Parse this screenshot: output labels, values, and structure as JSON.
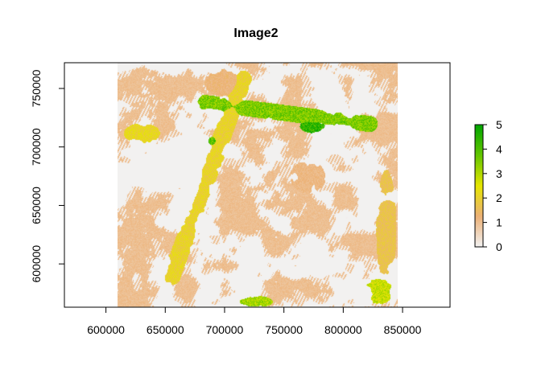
{
  "chart_data": {
    "type": "heatmap",
    "title": "Image2",
    "xlabel": "",
    "ylabel": "",
    "xlim": [
      565000,
      890000
    ],
    "ylim": [
      563000,
      772000
    ],
    "raster_extent": {
      "xmin": 610000,
      "xmax": 846000,
      "ymin": 563000,
      "ymax": 772000
    },
    "x_ticks": [
      {
        "value": 600000,
        "label": "600000"
      },
      {
        "value": 650000,
        "label": "650000"
      },
      {
        "value": 700000,
        "label": "700000"
      },
      {
        "value": 750000,
        "label": "750000"
      },
      {
        "value": 800000,
        "label": "800000"
      },
      {
        "value": 850000,
        "label": "850000"
      }
    ],
    "y_ticks": [
      {
        "value": 600000,
        "label": "600000"
      },
      {
        "value": 650000,
        "label": "650000"
      },
      {
        "value": 700000,
        "label": "700000"
      },
      {
        "value": 750000,
        "label": "750000"
      }
    ],
    "grid": false,
    "legend": {
      "placement": "right",
      "min": 0,
      "max": 5,
      "ticks": [
        {
          "value": 0,
          "label": "0"
        },
        {
          "value": 1,
          "label": "1"
        },
        {
          "value": 2,
          "label": "2"
        },
        {
          "value": 3,
          "label": "3"
        },
        {
          "value": 4,
          "label": "4"
        },
        {
          "value": 5,
          "label": "5"
        }
      ],
      "colors": [
        "#f2f2f2",
        "#ecb176",
        "#e6e600",
        "#63c600",
        "#00a600"
      ]
    },
    "patches": [
      {
        "kind": "diagonal-band",
        "x1": 655000,
        "y1": 590000,
        "x2": 715000,
        "y2": 758000,
        "half_width": 9000,
        "value": 2.2
      },
      {
        "kind": "diagonal-band",
        "x1": 683000,
        "y1": 738000,
        "x2": 822000,
        "y2": 720000,
        "half_width": 8000,
        "value": 3.8
      },
      {
        "kind": "blob",
        "x": 775000,
        "y": 718000,
        "rx": 14000,
        "ry": 7000,
        "value": 4.8
      },
      {
        "kind": "blob",
        "x": 800000,
        "y": 722000,
        "rx": 15000,
        "ry": 5000,
        "value": 4.4
      },
      {
        "kind": "blob",
        "x": 700000,
        "y": 735000,
        "rx": 12000,
        "ry": 7000,
        "value": 4.0
      },
      {
        "kind": "blob",
        "x": 690000,
        "y": 705000,
        "rx": 5000,
        "ry": 5000,
        "value": 4.3
      },
      {
        "kind": "blob",
        "x": 836000,
        "y": 630000,
        "rx": 10000,
        "ry": 60000,
        "value": 1.8
      },
      {
        "kind": "blob",
        "x": 830000,
        "y": 578000,
        "rx": 15000,
        "ry": 14000,
        "value": 3.0
      },
      {
        "kind": "blob",
        "x": 725000,
        "y": 568000,
        "rx": 18000,
        "ry": 6000,
        "value": 3.4
      },
      {
        "kind": "blob",
        "x": 630000,
        "y": 712000,
        "rx": 18000,
        "ry": 10000,
        "value": 2.3
      },
      {
        "kind": "blob",
        "x": 700000,
        "y": 755000,
        "rx": 20000,
        "ry": 14000,
        "value": 1.3
      },
      {
        "kind": "blob",
        "x": 770000,
        "y": 675000,
        "rx": 18000,
        "ry": 16000,
        "value": 1.2
      }
    ]
  }
}
